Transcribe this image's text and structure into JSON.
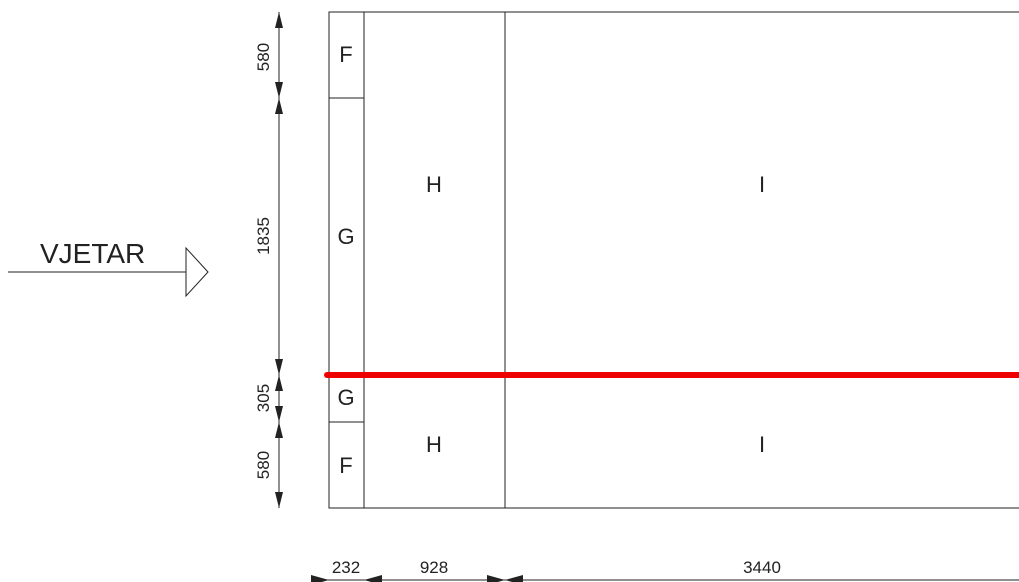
{
  "diagram": {
    "wind_label": "VJETAR",
    "zones": {
      "F_top": "F",
      "G_top": "G",
      "H_top": "H",
      "I_top": "I",
      "G_bottom": "G",
      "F_bottom": "F",
      "H_bottom": "H",
      "I_bottom": "I"
    },
    "vertical_dimensions": [
      "580",
      "1835",
      "305",
      "580"
    ],
    "horizontal_dimensions": [
      "232",
      "928",
      "3440"
    ],
    "colors": {
      "line": "#222222",
      "highlight_line": "#ee0000"
    }
  }
}
